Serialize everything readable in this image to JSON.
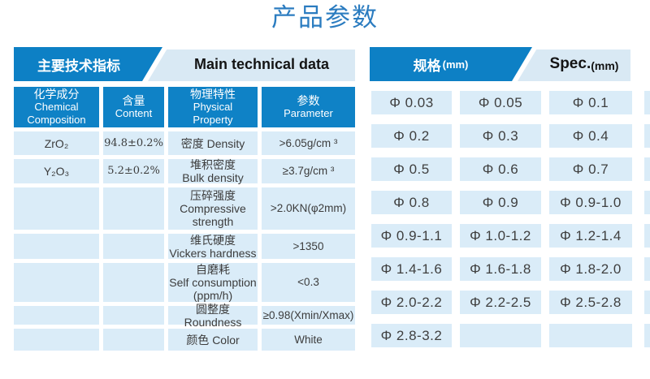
{
  "title": "产品参数",
  "left": {
    "header_zh": "主要技术指标",
    "header_en": "Main technical data",
    "columns": [
      {
        "zh": "化学成分",
        "en": "Chemical\nComposition"
      },
      {
        "zh": "含量",
        "en": "Content"
      },
      {
        "zh": "物理特性",
        "en": "Physical\nProperty"
      },
      {
        "zh": "参数",
        "en": "Parameter"
      }
    ],
    "rows": [
      {
        "chem": "ZrO₂",
        "content": "94.8±0.2%",
        "property": "密度 Density",
        "param": ">6.05g/cm ³"
      },
      {
        "chem": "Y₂O₃",
        "content": "5.2±0.2%",
        "property": "堆积密度\nBulk density",
        "param": "≥3.7g/cm ³"
      },
      {
        "chem": "",
        "content": "",
        "property": "压碎强度\nCompressive\nstrength",
        "param": ">2.0KN(φ2mm)"
      },
      {
        "chem": "",
        "content": "",
        "property": "维氏硬度\nVickers hardness",
        "param": ">1350"
      },
      {
        "chem": "",
        "content": "",
        "property": "自磨耗\nSelf consumption\n(ppm/h)",
        "param": "<0.3"
      },
      {
        "chem": "",
        "content": "",
        "property": "圆整度 Roundness",
        "param": "≥0.98(Xmin/Xmax)"
      },
      {
        "chem": "",
        "content": "",
        "property": "颜色 Color",
        "param": "White"
      }
    ]
  },
  "right": {
    "header_zh": "规格",
    "header_zh_unit": "(mm)",
    "header_en": "Spec.",
    "header_en_unit": "(mm)",
    "specs": [
      "Φ 0.03",
      "Φ 0.05",
      "Φ 0.1",
      "Φ 0.2",
      "Φ 0.3",
      "Φ 0.4",
      "Φ 0.5",
      "Φ 0.6",
      "Φ 0.7",
      "Φ 0.8",
      "Φ 0.9",
      "Φ 0.9-1.0",
      "Φ 0.9-1.1",
      "Φ 1.0-1.2",
      "Φ 1.2-1.4",
      "Φ 1.4-1.6",
      "Φ 1.6-1.8",
      "Φ 1.8-2.0",
      "Φ 2.0-2.2",
      "Φ 2.2-2.5",
      "Φ 2.5-2.8",
      "Φ 2.8-3.2",
      "",
      ""
    ]
  },
  "colors": {
    "primary_blue": "#0d80c5",
    "band_light": "#d9e9f4",
    "cell_light": "#daecf8",
    "title_blue": "#2b7cc0"
  }
}
